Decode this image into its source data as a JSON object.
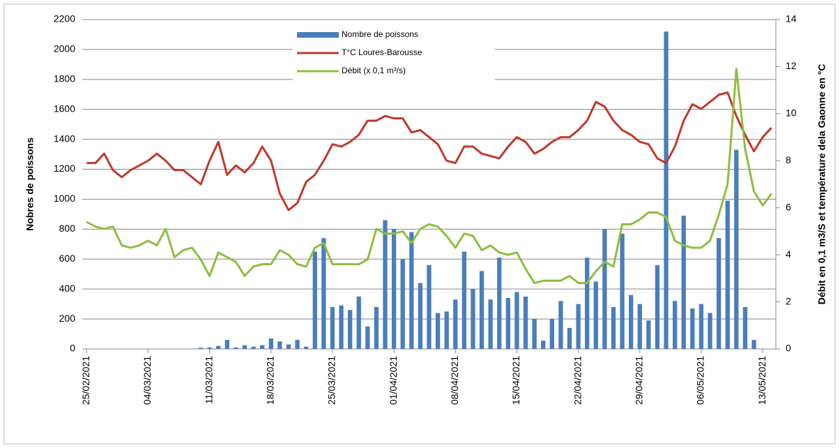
{
  "chart_data": {
    "type": "combo",
    "y_label": "Nobres de poissons",
    "y2_label": "Débit en 0,1 m3/S et température dela Gaonne en °C",
    "categories": [
      "25/02/2021",
      null,
      null,
      null,
      null,
      null,
      null,
      "04/03/2021",
      null,
      null,
      null,
      null,
      null,
      null,
      "11/03/2021",
      null,
      null,
      null,
      null,
      null,
      null,
      "18/03/2021",
      null,
      null,
      null,
      null,
      null,
      null,
      "25/03/2021",
      null,
      null,
      null,
      null,
      null,
      null,
      "01/04/2021",
      null,
      null,
      null,
      null,
      null,
      null,
      "08/04/2021",
      null,
      null,
      null,
      null,
      null,
      null,
      "15/04/2021",
      null,
      null,
      null,
      null,
      null,
      null,
      "22/04/2021",
      null,
      null,
      null,
      null,
      null,
      null,
      "29/04/2021",
      null,
      null,
      null,
      null,
      null,
      null,
      "06/05/2021",
      null,
      null,
      null,
      null,
      null,
      null,
      "13/05/2021",
      null
    ],
    "ylim": [
      0,
      2200
    ],
    "yticks": [
      0,
      200,
      400,
      600,
      800,
      1000,
      1200,
      1400,
      1600,
      1800,
      2000,
      2200
    ],
    "y2lim": [
      0,
      14
    ],
    "y2ticks": [
      0,
      2,
      4,
      6,
      8,
      10,
      12,
      14
    ],
    "grid": true,
    "series": [
      {
        "name": "Nombre de poissons",
        "type": "bar",
        "color": "#4a7ebb",
        "values": [
          0,
          0,
          0,
          0,
          0,
          0,
          0,
          0,
          0,
          0,
          0,
          0,
          0,
          8,
          10,
          20,
          60,
          10,
          25,
          15,
          25,
          70,
          50,
          30,
          60,
          15,
          650,
          740,
          280,
          290,
          260,
          350,
          150,
          280,
          860,
          800,
          600,
          780,
          440,
          560,
          240,
          250,
          330,
          650,
          400,
          520,
          330,
          610,
          340,
          380,
          350,
          200,
          55,
          200,
          320,
          140,
          300,
          610,
          450,
          800,
          280,
          770,
          360,
          300,
          190,
          560,
          2120,
          320,
          890,
          270,
          300,
          240,
          740,
          990,
          1330,
          280,
          60,
          0,
          0
        ]
      },
      {
        "name": "T°C Loures-Barousse",
        "type": "line",
        "axis": "y2",
        "color": "#c0392b",
        "values": [
          7.9,
          7.9,
          8.3,
          7.6,
          7.3,
          7.6,
          7.8,
          8.0,
          8.3,
          8.0,
          7.6,
          7.6,
          7.3,
          7.0,
          8.0,
          8.8,
          7.4,
          7.8,
          7.5,
          7.9,
          8.6,
          8.0,
          6.6,
          5.9,
          6.2,
          7.1,
          7.4,
          8.0,
          8.7,
          8.6,
          8.8,
          9.1,
          9.7,
          9.7,
          9.9,
          9.8,
          9.8,
          9.2,
          9.3,
          9.0,
          8.7,
          8.0,
          7.9,
          8.6,
          8.6,
          8.3,
          8.2,
          8.1,
          8.6,
          9.0,
          8.8,
          8.3,
          8.5,
          8.8,
          9.0,
          9.0,
          9.3,
          9.7,
          10.5,
          10.3,
          9.7,
          9.3,
          9.1,
          8.8,
          8.7,
          8.1,
          7.9,
          8.6,
          9.7,
          10.4,
          10.2,
          10.5,
          10.8,
          10.9,
          9.9,
          9.1,
          8.4,
          9.0,
          9.4
        ]
      },
      {
        "name": "Débit (x 0,1 m³/s)",
        "type": "line",
        "axis": "y2",
        "color": "#8cbf3f",
        "values": [
          5.4,
          5.2,
          5.1,
          5.2,
          4.4,
          4.3,
          4.4,
          4.6,
          4.4,
          5.1,
          3.9,
          4.2,
          4.3,
          3.8,
          3.1,
          4.1,
          3.9,
          3.7,
          3.1,
          3.5,
          3.6,
          3.6,
          4.2,
          4.0,
          3.6,
          3.5,
          4.3,
          4.5,
          3.6,
          3.6,
          3.6,
          3.6,
          3.8,
          5.1,
          4.9,
          4.9,
          5.0,
          4.5,
          5.1,
          5.3,
          5.2,
          4.8,
          4.3,
          4.9,
          4.8,
          4.2,
          4.4,
          4.1,
          4.0,
          4.1,
          3.4,
          2.8,
          2.9,
          2.9,
          2.9,
          3.1,
          2.8,
          2.8,
          3.3,
          3.7,
          3.5,
          5.3,
          5.3,
          5.5,
          5.8,
          5.8,
          5.6,
          4.6,
          4.4,
          4.3,
          4.3,
          4.6,
          5.7,
          7.0,
          11.9,
          8.5,
          6.7,
          6.1,
          6.6
        ]
      }
    ]
  }
}
